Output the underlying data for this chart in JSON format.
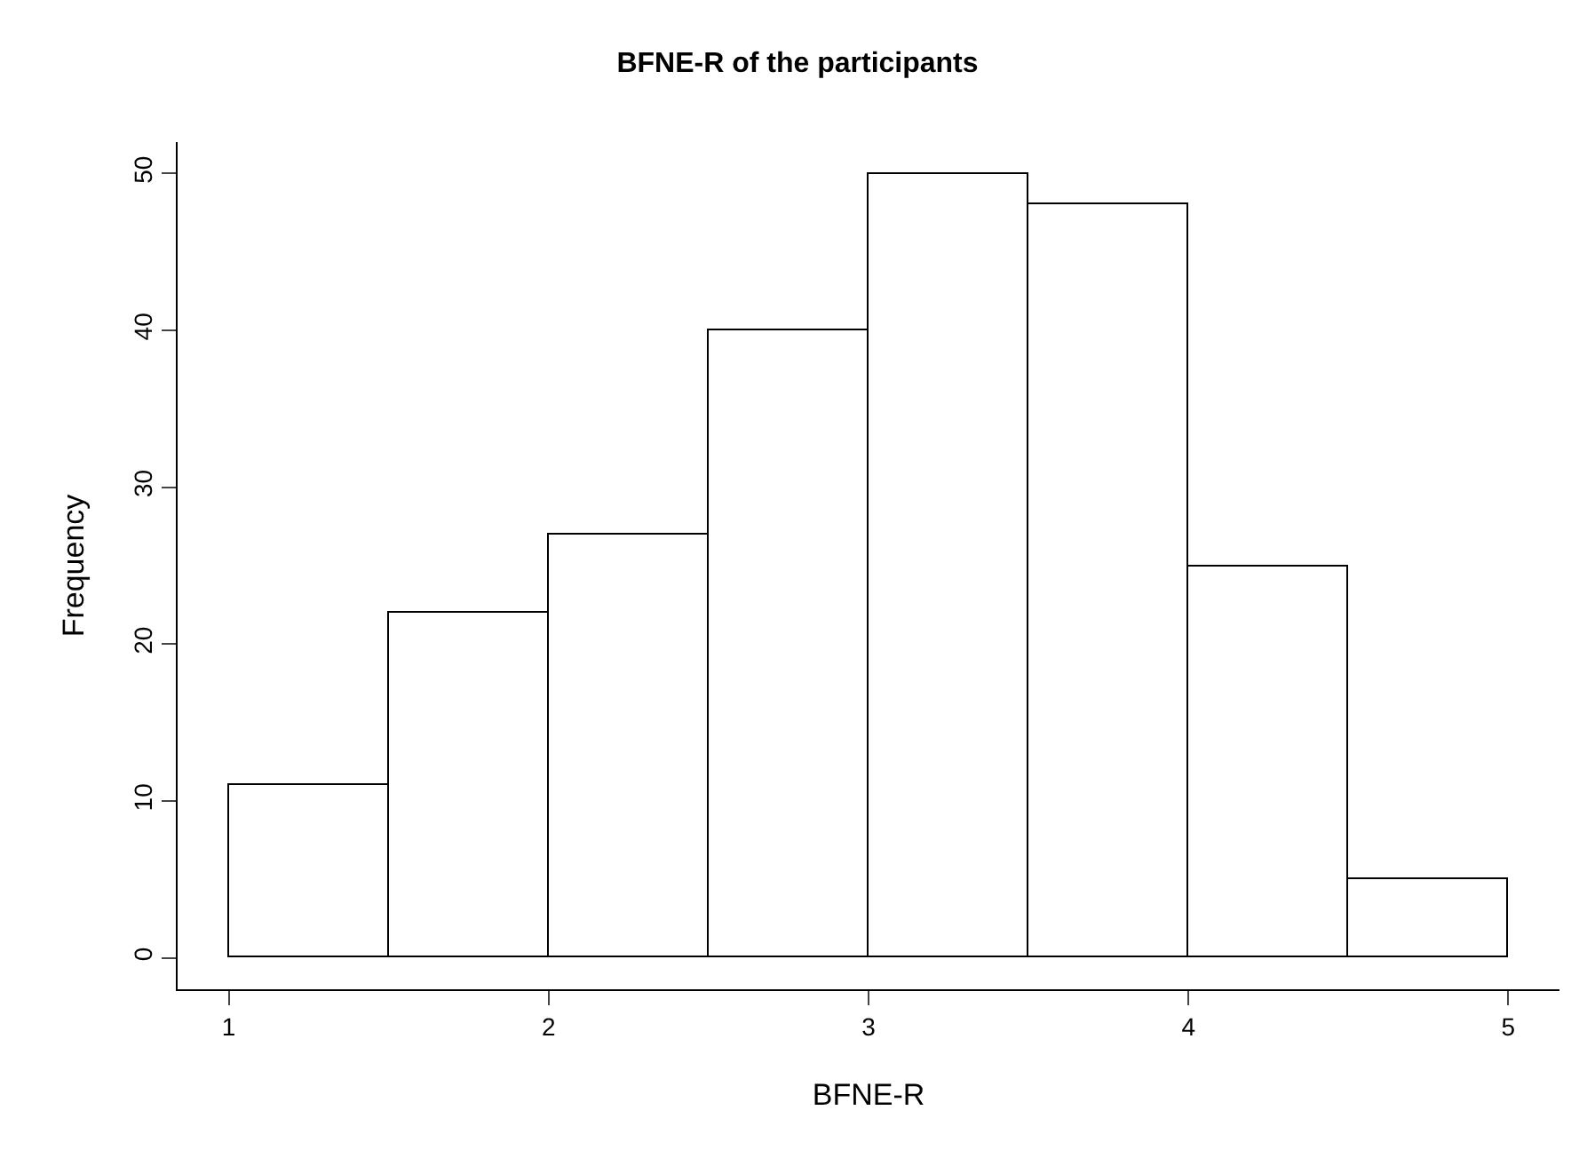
{
  "chart_data": {
    "type": "histogram",
    "title": "BFNE-R of the participants",
    "xlabel": "BFNE-R",
    "ylabel": "Frequency",
    "bins": [
      1,
      1.5,
      2,
      2.5,
      3,
      3.5,
      4,
      4.5,
      5
    ],
    "values": [
      11,
      22,
      27,
      40,
      50,
      48,
      25,
      5
    ],
    "color": "#ffffff",
    "xlim": [
      0.84,
      5.16
    ],
    "xticks": [
      1,
      2,
      3,
      4,
      5
    ],
    "ylim": [
      -2,
      52
    ],
    "yticks": [
      0,
      10,
      20,
      30,
      40,
      50
    ]
  }
}
